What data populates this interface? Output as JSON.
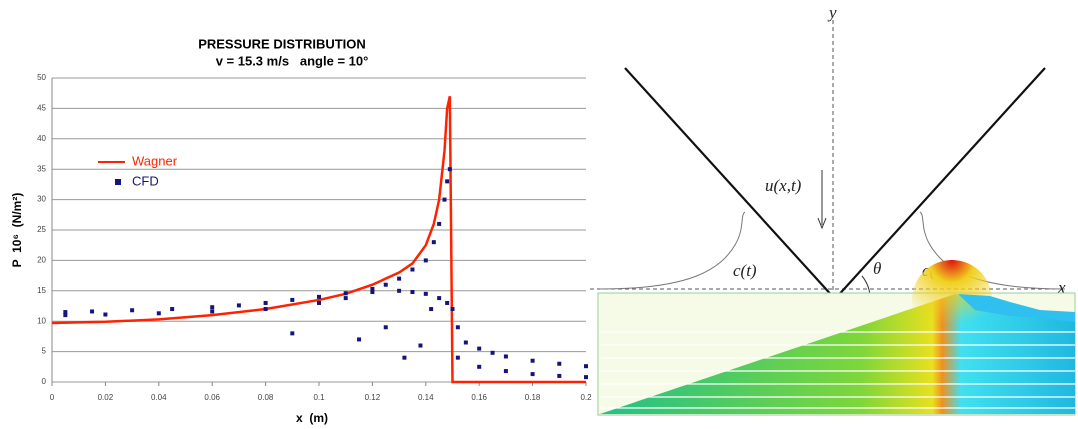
{
  "chart_data": {
    "type": "scatter",
    "title": "PRESSURE DISTRIBUTION",
    "subtitle": "v = 15.3 m/s   angle = 10°",
    "x_label": "x  (m)",
    "y_label": "P  10⁶  (N/m²)",
    "xlim": [
      0,
      0.2
    ],
    "ylim": [
      0,
      50
    ],
    "xticks": [
      0,
      0.02,
      0.04,
      0.06,
      0.08,
      0.1,
      0.12,
      0.14,
      0.16,
      0.18,
      0.2
    ],
    "yticks": [
      0,
      5,
      10,
      15,
      20,
      25,
      30,
      35,
      40,
      45,
      50
    ],
    "grid": true,
    "legend": "upper left",
    "series": [
      {
        "name": "Wagner",
        "color": "#ff2200",
        "style": "line",
        "x": [
          0,
          0.02,
          0.04,
          0.06,
          0.08,
          0.1,
          0.11,
          0.12,
          0.13,
          0.135,
          0.14,
          0.143,
          0.145,
          0.147,
          0.148,
          0.149,
          0.15,
          0.16,
          0.18,
          0.2
        ],
        "values": [
          9.7,
          9.9,
          10.3,
          11,
          12,
          13.5,
          14.5,
          16,
          18,
          19.5,
          22.5,
          26,
          30,
          38,
          45,
          47,
          0,
          0,
          0,
          0
        ]
      },
      {
        "name": "CFD",
        "color": "#14147a",
        "style": "marker",
        "x": [
          0.005,
          0.015,
          0.03,
          0.045,
          0.06,
          0.07,
          0.08,
          0.09,
          0.1,
          0.11,
          0.12,
          0.125,
          0.13,
          0.135,
          0.14,
          0.143,
          0.145,
          0.147,
          0.148,
          0.149,
          0.005,
          0.02,
          0.04,
          0.06,
          0.08,
          0.1,
          0.11,
          0.12,
          0.13,
          0.135,
          0.14,
          0.145,
          0.148,
          0.15,
          0.152,
          0.155,
          0.16,
          0.165,
          0.17,
          0.18,
          0.19,
          0.2,
          0.152,
          0.16,
          0.17,
          0.18,
          0.19,
          0.2,
          0.115,
          0.125,
          0.132,
          0.138,
          0.142,
          0.09
        ],
        "values": [
          11.5,
          11.6,
          11.8,
          12,
          12.3,
          12.6,
          13,
          13.5,
          14,
          14.6,
          15.3,
          16,
          17,
          18.5,
          20,
          23,
          26,
          30,
          33,
          35,
          11,
          11.1,
          11.3,
          11.6,
          12,
          13,
          13.8,
          14.8,
          15,
          14.8,
          14.5,
          13.8,
          13,
          12,
          9,
          6.5,
          5.5,
          4.8,
          4.2,
          3.5,
          3,
          2.6,
          4,
          2.5,
          1.8,
          1.3,
          1,
          0.8,
          7,
          9,
          4,
          6,
          12,
          8
        ]
      }
    ]
  },
  "diagram": {
    "y_axis": "y",
    "x_axis": "x",
    "velocity": "u(x,t)",
    "left_width": "c(t)",
    "right_width": "c(t)",
    "angle": "θ"
  }
}
